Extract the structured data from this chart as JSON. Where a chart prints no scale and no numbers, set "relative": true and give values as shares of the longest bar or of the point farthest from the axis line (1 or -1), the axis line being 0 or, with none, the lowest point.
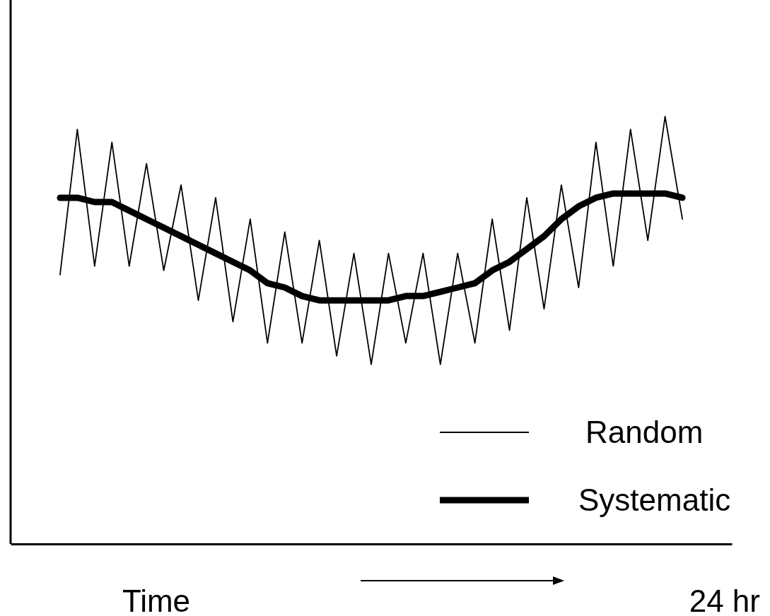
{
  "chart_data": {
    "type": "line",
    "relative": true,
    "xlabel": "Time",
    "annotations": [
      "24 hr"
    ],
    "legend": "bottom right",
    "marker": "none",
    "line_style": "solid",
    "categories": [
      null,
      null,
      null,
      null,
      null,
      null,
      null,
      null,
      null,
      null,
      null,
      null,
      null,
      null,
      null,
      null,
      null,
      null,
      null,
      null,
      null,
      null,
      null,
      null,
      null,
      null,
      null,
      null,
      null,
      null,
      null,
      null,
      null,
      null,
      null,
      null,
      null
    ],
    "series": [
      {
        "name": "Random",
        "color": "#000000",
        "values": [
          0.63,
          0.97,
          0.65,
          0.94,
          0.65,
          0.89,
          0.64,
          0.84,
          0.57,
          0.81,
          0.52,
          0.76,
          0.47,
          0.73,
          0.47,
          0.71,
          0.44,
          0.68,
          0.42,
          0.68,
          0.47,
          0.68,
          0.42,
          0.68,
          0.47,
          0.76,
          0.5,
          0.81,
          0.55,
          0.84,
          0.6,
          0.94,
          0.65,
          0.97,
          0.71,
          1,
          0.76
        ]
      },
      {
        "name": "Systematic",
        "color": "#000000",
        "values": [
          0.81,
          0.81,
          0.8,
          0.8,
          0.78,
          0.76,
          0.74,
          0.72,
          0.7,
          0.68,
          0.66,
          0.64,
          0.61,
          0.6,
          0.58,
          0.57,
          0.57,
          0.57,
          0.57,
          0.57,
          0.58,
          0.58,
          0.59,
          0.6,
          0.61,
          0.64,
          0.66,
          0.69,
          0.72,
          0.76,
          0.79,
          0.81,
          0.82,
          0.82,
          0.82,
          0.82,
          0.81
        ]
      }
    ]
  }
}
